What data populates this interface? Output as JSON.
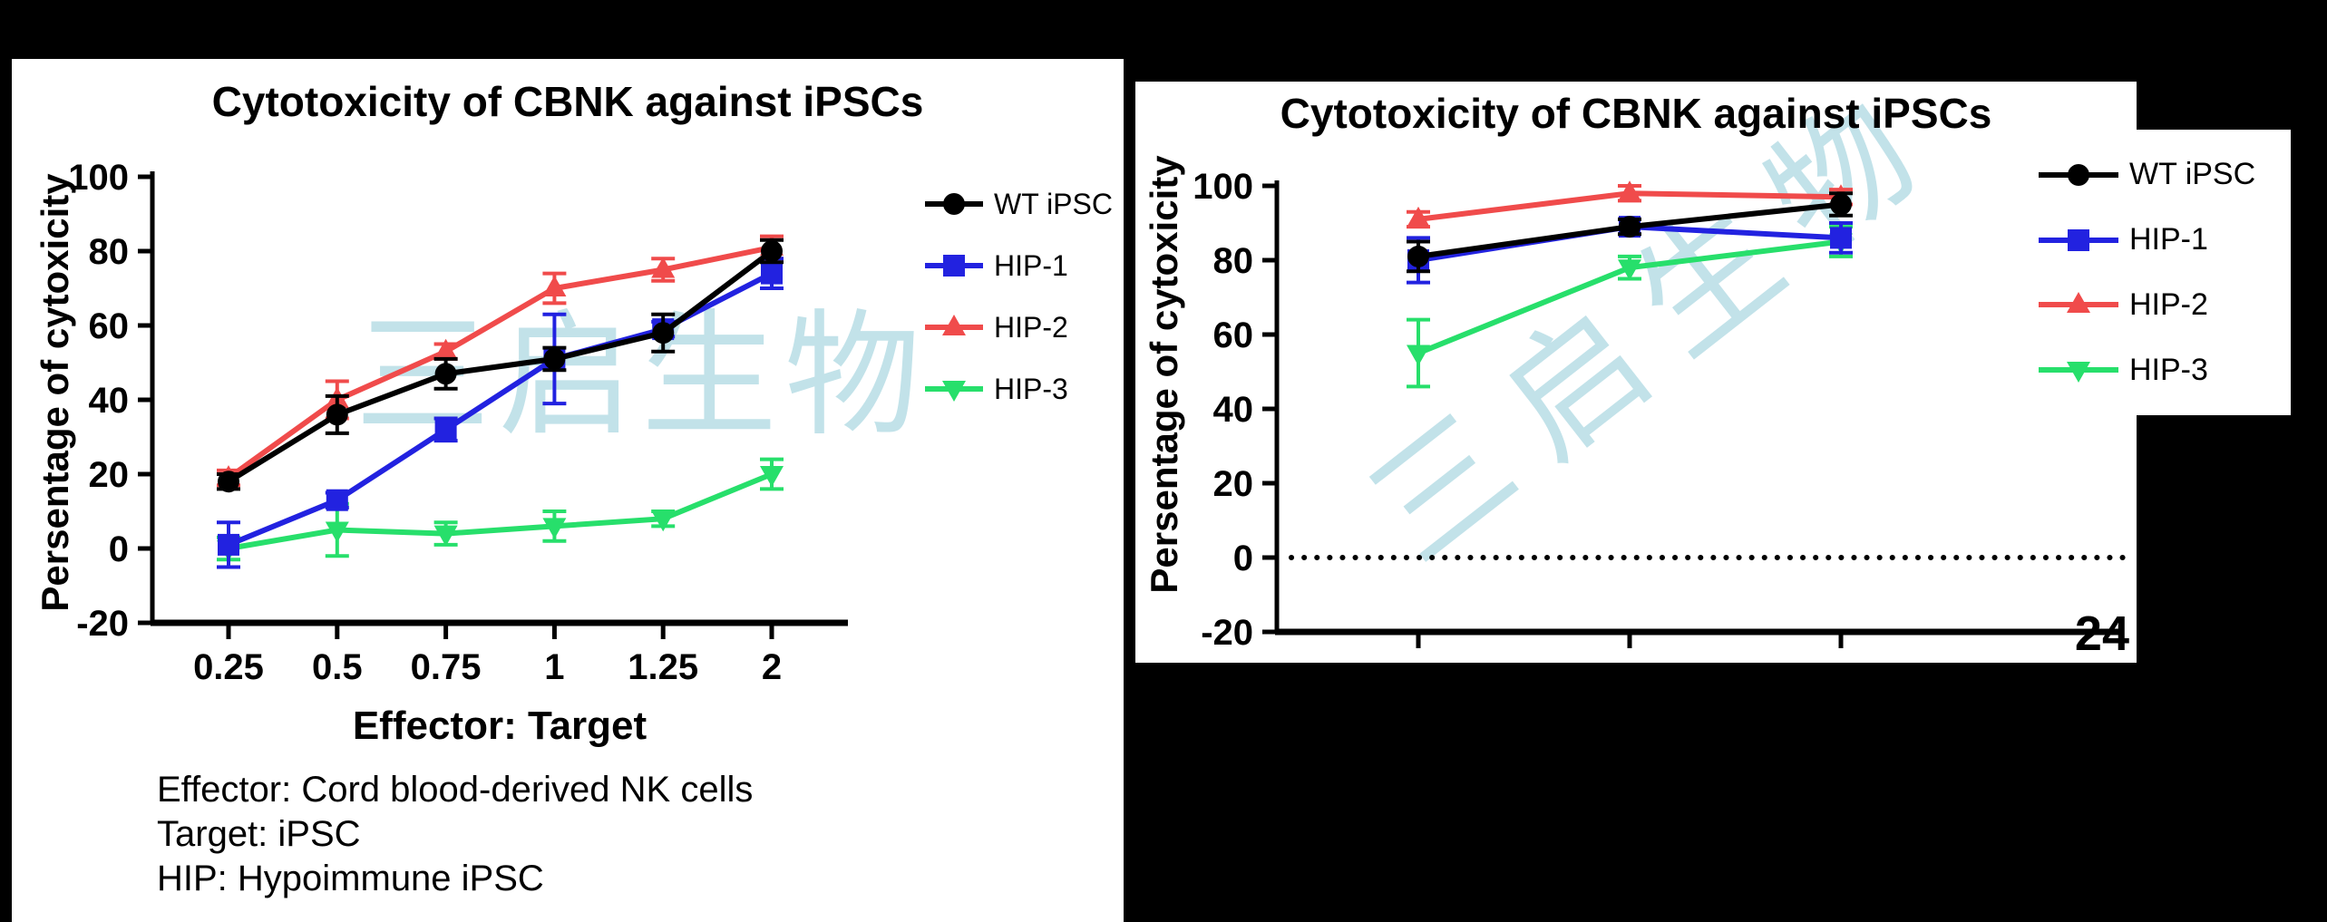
{
  "colors": {
    "background": "#000000",
    "panel": "#ffffff",
    "watermark": "#b3dbe4"
  },
  "watermark_text": "三启生物",
  "left_panel": {
    "annotation_lines": [
      "Effector: Cord blood-derived NK cells",
      "Target: iPSC",
      "HIP: Hypoimmune iPSC"
    ]
  },
  "right_panel": {
    "page_number": "24"
  },
  "chart_data": [
    {
      "type": "line",
      "title": "Cytotoxicity of CBNK against iPSCs",
      "xlabel": "Effector: Target",
      "ylabel": "Persentage of cytoxicity",
      "categories": [
        "0.25",
        "0.5",
        "0.75",
        "1",
        "1.25",
        "2"
      ],
      "ylim": [
        -20,
        100
      ],
      "y_ticks": [
        -20,
        0,
        20,
        40,
        60,
        80,
        100
      ],
      "grid": false,
      "legend_position": "right-inside",
      "series": [
        {
          "name": "WT iPSC",
          "marker": "circle",
          "color": "#000000",
          "values": [
            18,
            36,
            47,
            51,
            58,
            80
          ],
          "errors": [
            2,
            5,
            4,
            3,
            5,
            3
          ]
        },
        {
          "name": "HIP-1",
          "marker": "square",
          "color": "#2222e0",
          "values": [
            1,
            13,
            32,
            51,
            59,
            74
          ],
          "errors": [
            6,
            2,
            3,
            12,
            2,
            4
          ]
        },
        {
          "name": "HIP-2",
          "marker": "triangle-up",
          "color": "#f04b4b",
          "values": [
            19,
            40,
            53,
            70,
            75,
            81
          ],
          "errors": [
            2,
            5,
            2,
            4,
            3,
            3
          ]
        },
        {
          "name": "HIP-3",
          "marker": "triangle-down",
          "color": "#27df6b",
          "values": [
            0,
            5,
            4,
            6,
            8,
            20
          ],
          "errors": [
            3,
            7,
            3,
            4,
            2,
            4
          ]
        }
      ]
    },
    {
      "type": "line",
      "title": "Cytotoxicity of CBNK against iPSCs",
      "xlabel": "",
      "ylabel": "Persentage of cytoxicity",
      "categories": [
        "",
        "",
        ""
      ],
      "ylim": [
        -20,
        100
      ],
      "y_ticks": [
        -20,
        0,
        20,
        40,
        60,
        80,
        100
      ],
      "grid": false,
      "zero_line": "dotted",
      "legend_position": "right-outside",
      "series": [
        {
          "name": "WT iPSC",
          "marker": "circle",
          "color": "#000000",
          "values": [
            81,
            89,
            95
          ],
          "errors": [
            4,
            2,
            3
          ]
        },
        {
          "name": "HIP-1",
          "marker": "square",
          "color": "#2222e0",
          "values": [
            80,
            89,
            86
          ],
          "errors": [
            6,
            2,
            4
          ]
        },
        {
          "name": "HIP-2",
          "marker": "triangle-up",
          "color": "#f04b4b",
          "values": [
            91,
            98,
            97
          ],
          "errors": [
            2,
            2,
            2
          ]
        },
        {
          "name": "HIP-3",
          "marker": "triangle-down",
          "color": "#27df6b",
          "values": [
            55,
            78,
            85
          ],
          "errors": [
            9,
            3,
            4
          ]
        }
      ]
    }
  ]
}
